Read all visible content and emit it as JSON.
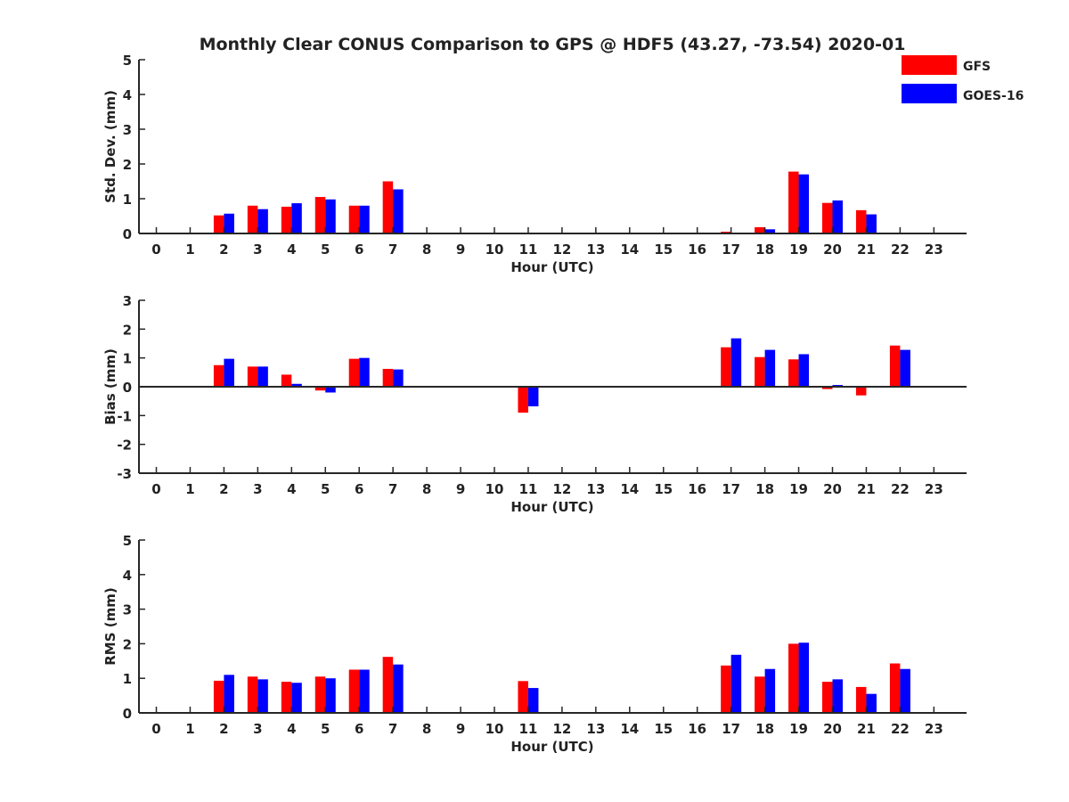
{
  "title": "Monthly Clear CONUS Comparison to GPS @ HDF5 (43.27, -73.54) 2020-01",
  "legend": [
    {
      "name": "GFS",
      "color": "#ff0000"
    },
    {
      "name": "GOES-16",
      "color": "#0000ff"
    }
  ],
  "chart_data": [
    {
      "type": "bar",
      "xlabel": "Hour (UTC)",
      "ylabel": "Std. Dev. (mm)",
      "ylim": [
        0,
        5
      ],
      "yticks": [
        0,
        1,
        2,
        3,
        4,
        5
      ],
      "categories": [
        "0",
        "1",
        "2",
        "3",
        "4",
        "5",
        "6",
        "7",
        "8",
        "9",
        "10",
        "11",
        "12",
        "13",
        "14",
        "15",
        "16",
        "17",
        "18",
        "19",
        "20",
        "21",
        "22",
        "23"
      ],
      "series": [
        {
          "name": "GFS",
          "values": [
            null,
            null,
            0.52,
            0.8,
            0.77,
            1.05,
            0.8,
            1.5,
            null,
            null,
            null,
            null,
            null,
            null,
            null,
            null,
            null,
            0.05,
            0.18,
            1.78,
            0.88,
            0.67,
            null,
            null
          ]
        },
        {
          "name": "GOES-16",
          "values": [
            null,
            null,
            0.57,
            0.7,
            0.87,
            0.98,
            0.8,
            1.27,
            null,
            null,
            null,
            null,
            null,
            null,
            null,
            null,
            null,
            0.0,
            0.12,
            1.7,
            0.95,
            0.55,
            null,
            null
          ]
        }
      ]
    },
    {
      "type": "bar",
      "xlabel": "Hour (UTC)",
      "ylabel": "Bias (mm)",
      "ylim": [
        -3,
        3
      ],
      "yticks": [
        -3,
        -2,
        -1,
        0,
        1,
        2,
        3
      ],
      "categories": [
        "0",
        "1",
        "2",
        "3",
        "4",
        "5",
        "6",
        "7",
        "8",
        "9",
        "10",
        "11",
        "12",
        "13",
        "14",
        "15",
        "16",
        "17",
        "18",
        "19",
        "20",
        "21",
        "22",
        "23"
      ],
      "series": [
        {
          "name": "GFS",
          "values": [
            null,
            null,
            0.75,
            0.7,
            0.42,
            -0.13,
            0.97,
            0.62,
            null,
            null,
            null,
            -0.9,
            null,
            null,
            null,
            null,
            null,
            1.37,
            1.03,
            0.95,
            -0.08,
            -0.3,
            1.43,
            null
          ]
        },
        {
          "name": "GOES-16",
          "values": [
            null,
            null,
            0.97,
            0.7,
            0.1,
            -0.2,
            1.0,
            0.6,
            null,
            null,
            null,
            -0.68,
            null,
            null,
            null,
            null,
            null,
            1.68,
            1.28,
            1.13,
            0.06,
            null,
            1.28,
            null
          ]
        }
      ]
    },
    {
      "type": "bar",
      "xlabel": "Hour (UTC)",
      "ylabel": "RMS (mm)",
      "ylim": [
        0,
        5
      ],
      "yticks": [
        0,
        1,
        2,
        3,
        4,
        5
      ],
      "categories": [
        "0",
        "1",
        "2",
        "3",
        "4",
        "5",
        "6",
        "7",
        "8",
        "9",
        "10",
        "11",
        "12",
        "13",
        "14",
        "15",
        "16",
        "17",
        "18",
        "19",
        "20",
        "21",
        "22",
        "23"
      ],
      "series": [
        {
          "name": "GFS",
          "values": [
            null,
            null,
            0.93,
            1.05,
            0.9,
            1.05,
            1.25,
            1.62,
            null,
            null,
            null,
            0.92,
            null,
            null,
            null,
            null,
            null,
            1.37,
            1.05,
            2.0,
            0.9,
            0.75,
            1.43,
            null
          ]
        },
        {
          "name": "GOES-16",
          "values": [
            null,
            null,
            1.1,
            0.97,
            0.87,
            1.0,
            1.25,
            1.4,
            null,
            null,
            null,
            0.72,
            null,
            null,
            null,
            null,
            null,
            1.68,
            1.27,
            2.03,
            0.97,
            0.55,
            1.27,
            null
          ]
        }
      ]
    }
  ]
}
